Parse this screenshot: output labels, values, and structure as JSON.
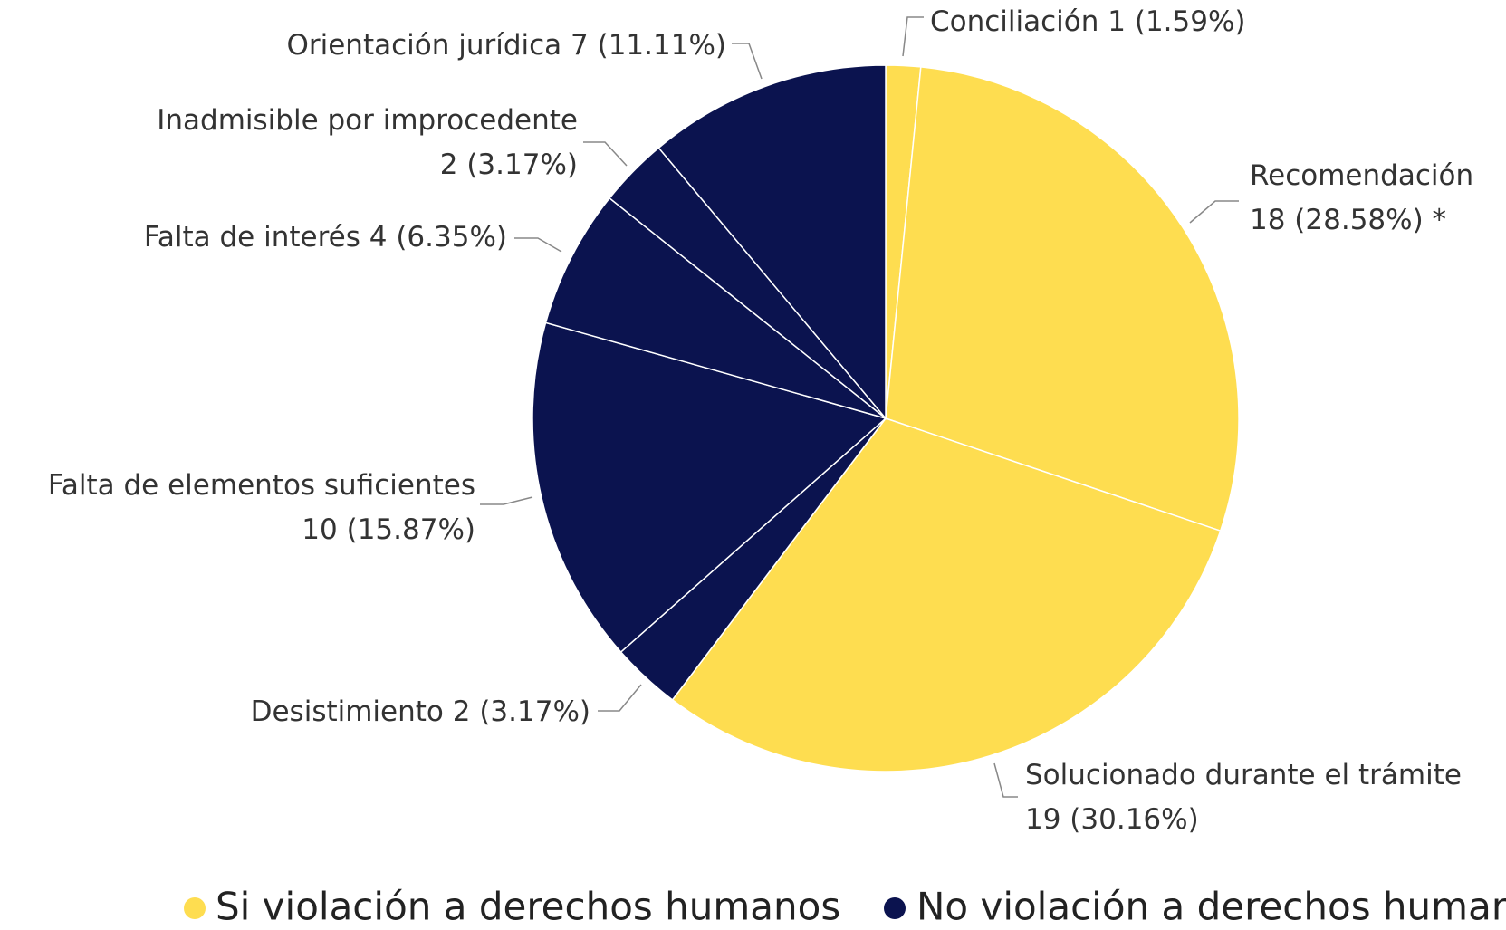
{
  "chart_data": {
    "type": "pie",
    "categories": [
      "Conciliación",
      "Recomendación",
      "Solucionado durante el trámite",
      "Desistimiento",
      "Falta de elementos suficientes",
      "Falta de interés",
      "Inadmisible por improcedente",
      "Orientación jurídica"
    ],
    "values": [
      1,
      18,
      19,
      2,
      10,
      4,
      2,
      7
    ],
    "value_labels": [
      "1 (1.59%)",
      "18 (28.58%) *",
      "19 (30.16%)",
      "2 (3.17%)",
      "10 (15.87%)",
      "4 (6.35%)",
      "2 (3.17%)",
      "7 (11.11%)"
    ],
    "colors": [
      "#FEDD50",
      "#FEDD50",
      "#FEDD50",
      "#0B134F",
      "#0B134F",
      "#0B134F",
      "#0B134F",
      "#0B134F"
    ],
    "legend": [
      {
        "name": "Si violación a derechos humanos",
        "color": "#FEDD50"
      },
      {
        "name": "No violación a derechos humanos",
        "color": "#0B134F"
      }
    ]
  }
}
